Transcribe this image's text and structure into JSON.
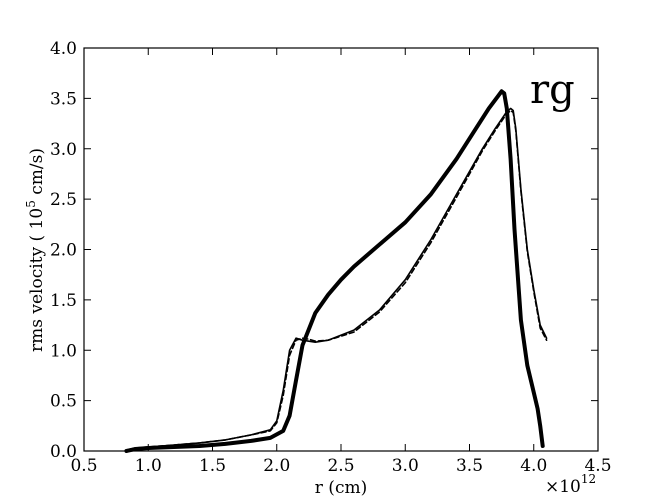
{
  "chart_data": {
    "type": "line",
    "panel_label": "rg",
    "xlabel": "r (cm)",
    "ylabel": {
      "prefix": "rms velocity ( 10",
      "exponent": "5",
      "suffix": " cm/s)"
    },
    "x_offset": {
      "base": "×10",
      "exponent": "12"
    },
    "xlim": [
      0.5,
      4.5
    ],
    "ylim": [
      0.0,
      4.0
    ],
    "xticks": [
      0.5,
      1.0,
      1.5,
      2.0,
      2.5,
      3.0,
      3.5,
      4.0,
      4.5
    ],
    "xtick_labels": [
      "0.5",
      "1.0",
      "1.5",
      "2.0",
      "2.5",
      "3.0",
      "3.5",
      "4.0",
      "4.5"
    ],
    "yticks": [
      0.0,
      0.5,
      1.0,
      1.5,
      2.0,
      2.5,
      3.0,
      3.5,
      4.0
    ],
    "ytick_labels": [
      "0.0",
      "0.5",
      "1.0",
      "1.5",
      "2.0",
      "2.5",
      "3.0",
      "3.5",
      "4.0"
    ],
    "grid": false,
    "legend": "none",
    "colors": {
      "line": "#000000",
      "axes": "#000000",
      "background": "#ffffff"
    },
    "series": [
      {
        "style": "thick-solid",
        "x": [
          0.83,
          0.9,
          1.0,
          1.2,
          1.4,
          1.6,
          1.8,
          1.95,
          2.05,
          2.1,
          2.15,
          2.2,
          2.3,
          2.4,
          2.5,
          2.6,
          2.8,
          3.0,
          3.2,
          3.4,
          3.55,
          3.65,
          3.72,
          3.75,
          3.77,
          3.79,
          3.82,
          3.85,
          3.9,
          3.95,
          4.0,
          4.03,
          4.05,
          4.07
        ],
        "y": [
          0.0,
          0.02,
          0.03,
          0.04,
          0.05,
          0.07,
          0.1,
          0.13,
          0.2,
          0.35,
          0.7,
          1.05,
          1.37,
          1.55,
          1.7,
          1.83,
          2.05,
          2.27,
          2.55,
          2.9,
          3.2,
          3.4,
          3.52,
          3.57,
          3.55,
          3.4,
          2.9,
          2.2,
          1.3,
          0.85,
          0.58,
          0.42,
          0.25,
          0.05
        ]
      },
      {
        "style": "thin-solid",
        "x": [
          0.83,
          0.9,
          1.0,
          1.2,
          1.4,
          1.6,
          1.8,
          1.95,
          2.0,
          2.05,
          2.1,
          2.15,
          2.2,
          2.25,
          2.3,
          2.4,
          2.6,
          2.8,
          3.0,
          3.2,
          3.4,
          3.6,
          3.7,
          3.78,
          3.82,
          3.84,
          3.86,
          3.9,
          3.95,
          4.0,
          4.05,
          4.1
        ],
        "y": [
          0.01,
          0.03,
          0.04,
          0.06,
          0.08,
          0.11,
          0.16,
          0.21,
          0.3,
          0.6,
          1.0,
          1.12,
          1.1,
          1.09,
          1.08,
          1.1,
          1.2,
          1.4,
          1.7,
          2.1,
          2.55,
          3.0,
          3.2,
          3.35,
          3.4,
          3.38,
          3.2,
          2.6,
          2.0,
          1.6,
          1.25,
          1.12
        ]
      },
      {
        "style": "thin-dashed",
        "x": [
          0.83,
          0.9,
          1.0,
          1.2,
          1.4,
          1.6,
          1.8,
          1.95,
          2.0,
          2.05,
          2.1,
          2.15,
          2.2,
          2.25,
          2.3,
          2.4,
          2.6,
          2.8,
          3.0,
          3.2,
          3.4,
          3.6,
          3.7,
          3.78,
          3.82,
          3.84,
          3.86,
          3.9,
          3.95,
          4.0,
          4.05,
          4.1
        ],
        "y": [
          0.01,
          0.03,
          0.04,
          0.06,
          0.08,
          0.11,
          0.16,
          0.2,
          0.28,
          0.55,
          0.95,
          1.1,
          1.12,
          1.11,
          1.09,
          1.1,
          1.18,
          1.38,
          1.67,
          2.07,
          2.52,
          2.98,
          3.18,
          3.33,
          3.38,
          3.36,
          3.18,
          2.58,
          1.98,
          1.58,
          1.22,
          1.1
        ]
      }
    ]
  }
}
